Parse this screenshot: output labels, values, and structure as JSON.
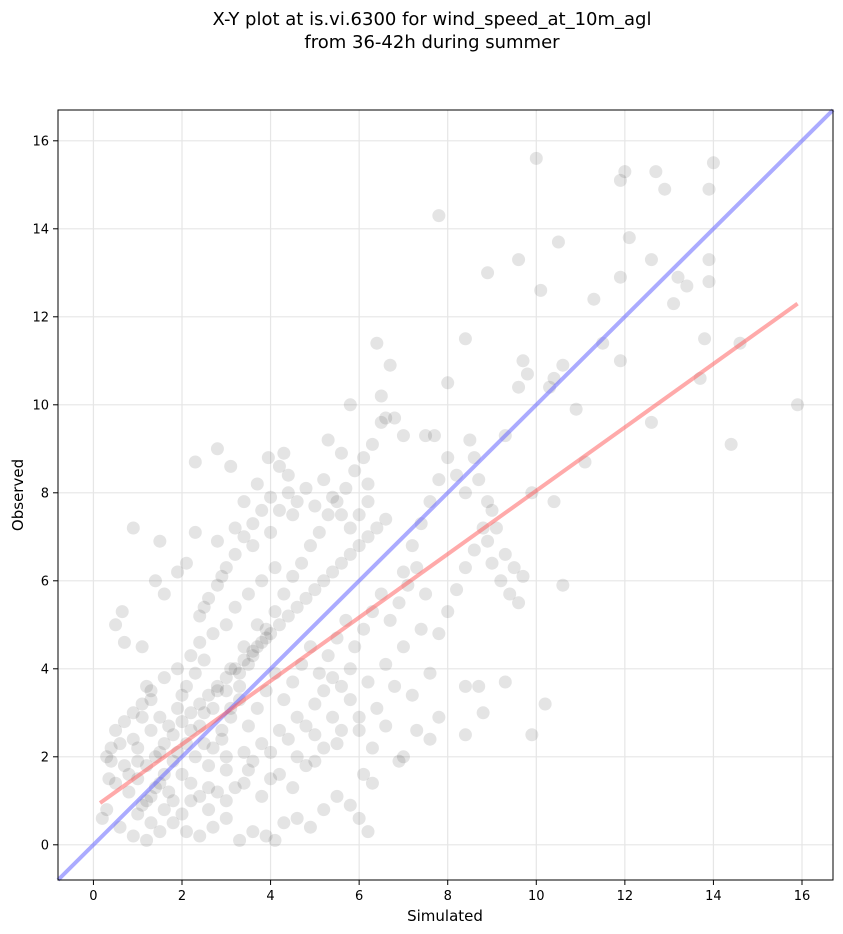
{
  "chart_data": {
    "type": "scatter",
    "title_line1": "X-Y plot at is.vi.6300 for wind_speed_at_10m_agl",
    "title_line2": "from 36-42h during summer",
    "xlabel": "Simulated",
    "ylabel": "Observed",
    "xlim": [
      -0.8,
      16.7
    ],
    "ylim": [
      -0.8,
      16.7
    ],
    "xticks": [
      "0",
      "2",
      "4",
      "6",
      "8",
      "10",
      "12",
      "14",
      "16"
    ],
    "yticks": [
      "0",
      "2",
      "4",
      "6",
      "8",
      "10",
      "12",
      "14",
      "16"
    ],
    "grid": true,
    "colors": {
      "points": "#222222",
      "identity_line": "#6666ff",
      "fit_line": "#ff5555",
      "grid": "#e6e6e6"
    },
    "identity_line": {
      "x": [
        -0.8,
        16.7
      ],
      "y": [
        -0.8,
        16.7
      ]
    },
    "fit_line": {
      "x": [
        0.15,
        15.9
      ],
      "y": [
        0.95,
        12.3
      ]
    },
    "points": [
      [
        0.5,
        5.0
      ],
      [
        0.65,
        5.3
      ],
      [
        0.7,
        4.6
      ],
      [
        0.9,
        7.2
      ],
      [
        1.1,
        4.5
      ],
      [
        1.2,
        3.6
      ],
      [
        1.5,
        6.9
      ],
      [
        1.4,
        6.0
      ],
      [
        1.6,
        5.7
      ],
      [
        1.9,
        6.2
      ],
      [
        2.3,
        8.7
      ],
      [
        2.3,
        7.1
      ],
      [
        2.1,
        6.4
      ],
      [
        2.5,
        5.4
      ],
      [
        2.8,
        6.9
      ],
      [
        2.8,
        9.0
      ],
      [
        2.9,
        6.1
      ],
      [
        3.1,
        8.6
      ],
      [
        3.2,
        7.2
      ],
      [
        3.4,
        7.8
      ],
      [
        3.6,
        6.8
      ],
      [
        3.7,
        8.2
      ],
      [
        3.95,
        8.8
      ],
      [
        4.0,
        7.9
      ],
      [
        4.2,
        8.6
      ],
      [
        4.3,
        8.9
      ],
      [
        4.4,
        8.4
      ],
      [
        4.5,
        7.5
      ],
      [
        4.1,
        6.3
      ],
      [
        3.8,
        6.0
      ],
      [
        3.5,
        5.7
      ],
      [
        3.2,
        5.4
      ],
      [
        3.0,
        5.0
      ],
      [
        2.7,
        4.8
      ],
      [
        2.4,
        4.6
      ],
      [
        2.2,
        4.3
      ],
      [
        1.9,
        4.0
      ],
      [
        1.6,
        3.8
      ],
      [
        1.3,
        3.5
      ],
      [
        1.1,
        3.2
      ],
      [
        0.9,
        3.0
      ],
      [
        0.7,
        2.8
      ],
      [
        0.5,
        2.6
      ],
      [
        0.4,
        2.2
      ],
      [
        0.3,
        2.0
      ],
      [
        0.35,
        1.5
      ],
      [
        0.3,
        0.8
      ],
      [
        0.2,
        0.6
      ],
      [
        0.6,
        0.4
      ],
      [
        0.9,
        0.2
      ],
      [
        1.2,
        0.1
      ],
      [
        1.5,
        0.3
      ],
      [
        1.8,
        0.5
      ],
      [
        2.1,
        0.3
      ],
      [
        2.4,
        0.2
      ],
      [
        2.7,
        0.4
      ],
      [
        3.0,
        0.6
      ],
      [
        3.3,
        0.1
      ],
      [
        3.6,
        0.3
      ],
      [
        3.9,
        0.2
      ],
      [
        4.1,
        0.1
      ],
      [
        4.3,
        0.5
      ],
      [
        4.6,
        0.6
      ],
      [
        4.9,
        0.4
      ],
      [
        5.2,
        0.8
      ],
      [
        5.5,
        1.1
      ],
      [
        5.8,
        0.9
      ],
      [
        6.2,
        0.3
      ],
      [
        6.0,
        0.6
      ],
      [
        6.3,
        1.4
      ],
      [
        0.8,
        1.2
      ],
      [
        1.0,
        1.5
      ],
      [
        1.2,
        1.8
      ],
      [
        1.4,
        2.0
      ],
      [
        1.6,
        2.3
      ],
      [
        1.8,
        2.5
      ],
      [
        2.0,
        2.8
      ],
      [
        2.2,
        3.0
      ],
      [
        2.4,
        3.2
      ],
      [
        2.6,
        3.4
      ],
      [
        2.8,
        3.6
      ],
      [
        3.0,
        3.8
      ],
      [
        3.2,
        4.0
      ],
      [
        3.4,
        4.2
      ],
      [
        3.6,
        4.4
      ],
      [
        3.8,
        4.6
      ],
      [
        4.0,
        4.8
      ],
      [
        4.2,
        5.0
      ],
      [
        4.4,
        5.2
      ],
      [
        4.6,
        5.4
      ],
      [
        4.8,
        5.6
      ],
      [
        5.0,
        5.8
      ],
      [
        5.2,
        6.0
      ],
      [
        5.4,
        6.2
      ],
      [
        5.6,
        6.4
      ],
      [
        5.8,
        6.6
      ],
      [
        6.0,
        6.8
      ],
      [
        6.2,
        7.0
      ],
      [
        6.4,
        7.2
      ],
      [
        6.6,
        7.4
      ],
      [
        1.0,
        2.2
      ],
      [
        1.3,
        2.6
      ],
      [
        1.7,
        1.2
      ],
      [
        2.0,
        1.6
      ],
      [
        2.3,
        2.0
      ],
      [
        2.6,
        1.8
      ],
      [
        2.9,
        2.4
      ],
      [
        3.1,
        2.9
      ],
      [
        3.3,
        3.3
      ],
      [
        3.5,
        2.7
      ],
      [
        3.7,
        3.1
      ],
      [
        3.9,
        3.5
      ],
      [
        4.1,
        3.9
      ],
      [
        4.3,
        3.3
      ],
      [
        4.5,
        3.7
      ],
      [
        4.7,
        4.1
      ],
      [
        4.9,
        4.5
      ],
      [
        5.1,
        3.9
      ],
      [
        5.3,
        4.3
      ],
      [
        5.5,
        4.7
      ],
      [
        5.7,
        5.1
      ],
      [
        5.9,
        4.5
      ],
      [
        6.1,
        4.9
      ],
      [
        6.3,
        5.3
      ],
      [
        6.5,
        5.7
      ],
      [
        6.7,
        5.1
      ],
      [
        6.9,
        5.5
      ],
      [
        7.1,
        5.9
      ],
      [
        7.3,
        6.3
      ],
      [
        7.5,
        5.7
      ],
      [
        1.2,
        1.0
      ],
      [
        1.5,
        1.4
      ],
      [
        1.8,
        1.9
      ],
      [
        2.1,
        2.3
      ],
      [
        2.4,
        2.7
      ],
      [
        2.7,
        3.1
      ],
      [
        3.0,
        3.5
      ],
      [
        3.3,
        3.9
      ],
      [
        3.6,
        4.3
      ],
      [
        3.9,
        4.7
      ],
      [
        1.0,
        0.7
      ],
      [
        1.3,
        1.1
      ],
      [
        1.6,
        1.6
      ],
      [
        1.9,
        2.1
      ],
      [
        2.2,
        2.6
      ],
      [
        2.5,
        3.0
      ],
      [
        2.8,
        3.5
      ],
      [
        3.1,
        4.0
      ],
      [
        3.4,
        4.5
      ],
      [
        3.7,
        5.0
      ],
      [
        0.7,
        1.8
      ],
      [
        0.9,
        2.4
      ],
      [
        1.1,
        2.9
      ],
      [
        1.3,
        3.3
      ],
      [
        1.5,
        2.1
      ],
      [
        1.7,
        2.7
      ],
      [
        1.9,
        3.1
      ],
      [
        2.1,
        3.6
      ],
      [
        2.3,
        3.9
      ],
      [
        2.5,
        4.2
      ],
      [
        2.7,
        2.2
      ],
      [
        2.9,
        2.6
      ],
      [
        3.1,
        3.1
      ],
      [
        3.3,
        3.6
      ],
      [
        3.5,
        4.1
      ],
      [
        3.7,
        4.5
      ],
      [
        3.9,
        4.9
      ],
      [
        4.1,
        5.3
      ],
      [
        4.3,
        5.7
      ],
      [
        4.5,
        6.1
      ],
      [
        4.7,
        6.4
      ],
      [
        4.9,
        6.8
      ],
      [
        5.1,
        7.1
      ],
      [
        5.3,
        7.5
      ],
      [
        5.5,
        7.8
      ],
      [
        5.7,
        8.1
      ],
      [
        5.9,
        8.5
      ],
      [
        6.1,
        8.8
      ],
      [
        6.3,
        9.1
      ],
      [
        6.5,
        9.6
      ],
      [
        5.3,
        9.2
      ],
      [
        5.6,
        8.9
      ],
      [
        5.8,
        10.0
      ],
      [
        6.2,
        8.2
      ],
      [
        6.5,
        10.2
      ],
      [
        6.6,
        9.7
      ],
      [
        6.8,
        9.7
      ],
      [
        6.4,
        11.4
      ],
      [
        6.7,
        10.9
      ],
      [
        7.0,
        9.3
      ],
      [
        1.5,
        2.9
      ],
      [
        2.0,
        3.4
      ],
      [
        2.5,
        2.3
      ],
      [
        3.0,
        2.0
      ],
      [
        3.5,
        1.7
      ],
      [
        4.0,
        1.5
      ],
      [
        4.5,
        1.3
      ],
      [
        5.0,
        1.9
      ],
      [
        5.5,
        2.3
      ],
      [
        6.0,
        2.6
      ],
      [
        2.2,
        1.0
      ],
      [
        2.6,
        1.3
      ],
      [
        3.0,
        1.0
      ],
      [
        3.4,
        1.4
      ],
      [
        3.8,
        1.1
      ],
      [
        4.2,
        1.6
      ],
      [
        4.6,
        2.0
      ],
      [
        5.0,
        2.5
      ],
      [
        5.4,
        2.9
      ],
      [
        5.8,
        3.3
      ],
      [
        6.2,
        3.7
      ],
      [
        6.6,
        4.1
      ],
      [
        7.0,
        4.5
      ],
      [
        7.4,
        4.9
      ],
      [
        6.8,
        3.6
      ],
      [
        6.4,
        3.1
      ],
      [
        6.0,
        2.9
      ],
      [
        5.6,
        2.6
      ],
      [
        5.2,
        2.2
      ],
      [
        4.8,
        1.8
      ],
      [
        7.2,
        3.4
      ],
      [
        7.6,
        3.9
      ],
      [
        7.8,
        2.9
      ],
      [
        7.6,
        2.4
      ],
      [
        7.0,
        2.0
      ],
      [
        6.6,
        2.7
      ],
      [
        6.9,
        1.9
      ],
      [
        7.3,
        2.6
      ],
      [
        6.3,
        2.2
      ],
      [
        6.1,
        1.6
      ],
      [
        7.0,
        6.2
      ],
      [
        7.2,
        6.8
      ],
      [
        7.4,
        7.3
      ],
      [
        7.6,
        7.8
      ],
      [
        7.8,
        8.3
      ],
      [
        8.0,
        8.8
      ],
      [
        7.5,
        9.3
      ],
      [
        7.8,
        14.3
      ],
      [
        8.2,
        8.4
      ],
      [
        8.4,
        8.0
      ],
      [
        8.5,
        9.2
      ],
      [
        8.6,
        8.8
      ],
      [
        8.7,
        8.3
      ],
      [
        8.9,
        7.8
      ],
      [
        8.8,
        7.2
      ],
      [
        8.6,
        6.7
      ],
      [
        8.4,
        6.3
      ],
      [
        8.2,
        5.8
      ],
      [
        8.0,
        5.3
      ],
      [
        7.8,
        4.8
      ],
      [
        8.9,
        6.9
      ],
      [
        9.0,
        6.4
      ],
      [
        9.2,
        6.0
      ],
      [
        9.4,
        5.7
      ],
      [
        9.5,
        6.3
      ],
      [
        9.6,
        5.5
      ],
      [
        9.7,
        6.1
      ],
      [
        9.3,
        6.6
      ],
      [
        9.1,
        7.2
      ],
      [
        9.0,
        7.6
      ],
      [
        8.9,
        13.0
      ],
      [
        9.6,
        13.3
      ],
      [
        10.0,
        15.6
      ],
      [
        10.1,
        12.6
      ],
      [
        10.5,
        13.7
      ],
      [
        9.9,
        8.0
      ],
      [
        10.3,
        10.4
      ],
      [
        10.6,
        10.9
      ],
      [
        10.9,
        9.9
      ],
      [
        11.1,
        8.7
      ],
      [
        11.3,
        12.4
      ],
      [
        11.5,
        11.4
      ],
      [
        11.9,
        11.0
      ],
      [
        11.9,
        12.9
      ],
      [
        12.0,
        15.3
      ],
      [
        12.1,
        13.8
      ],
      [
        11.9,
        15.1
      ],
      [
        12.6,
        9.6
      ],
      [
        12.6,
        13.3
      ],
      [
        12.7,
        15.3
      ],
      [
        12.9,
        14.9
      ],
      [
        13.1,
        12.3
      ],
      [
        13.2,
        12.9
      ],
      [
        13.4,
        12.7
      ],
      [
        13.7,
        10.6
      ],
      [
        13.8,
        11.5
      ],
      [
        13.9,
        12.8
      ],
      [
        13.9,
        13.3
      ],
      [
        13.9,
        14.9
      ],
      [
        14.0,
        15.5
      ],
      [
        14.4,
        9.1
      ],
      [
        14.6,
        11.4
      ],
      [
        15.9,
        10.0
      ],
      [
        9.3,
        9.3
      ],
      [
        9.6,
        10.4
      ],
      [
        9.7,
        11.0
      ],
      [
        9.8,
        10.7
      ],
      [
        10.4,
        10.6
      ],
      [
        10.6,
        5.9
      ],
      [
        10.4,
        7.8
      ],
      [
        8.4,
        3.6
      ],
      [
        8.7,
        3.6
      ],
      [
        8.8,
        3.0
      ],
      [
        8.4,
        2.5
      ],
      [
        9.9,
        2.5
      ],
      [
        10.2,
        3.2
      ],
      [
        9.3,
        3.7
      ],
      [
        8.4,
        11.5
      ],
      [
        8.0,
        10.5
      ],
      [
        7.7,
        9.3
      ],
      [
        0.4,
        1.9
      ],
      [
        0.5,
        1.4
      ],
      [
        0.6,
        2.3
      ],
      [
        0.8,
        1.6
      ],
      [
        1.0,
        1.9
      ],
      [
        1.1,
        0.9
      ],
      [
        1.3,
        0.5
      ],
      [
        1.4,
        1.3
      ],
      [
        1.6,
        0.8
      ],
      [
        1.8,
        1.0
      ],
      [
        2.0,
        0.7
      ],
      [
        2.2,
        1.4
      ],
      [
        2.4,
        1.1
      ],
      [
        2.6,
        0.8
      ],
      [
        2.8,
        1.2
      ],
      [
        3.0,
        1.7
      ],
      [
        3.2,
        1.3
      ],
      [
        3.4,
        2.1
      ],
      [
        3.6,
        1.9
      ],
      [
        3.8,
        2.3
      ],
      [
        4.0,
        2.1
      ],
      [
        4.2,
        2.6
      ],
      [
        4.4,
        2.4
      ],
      [
        4.6,
        2.9
      ],
      [
        4.8,
        2.7
      ],
      [
        5.0,
        3.2
      ],
      [
        5.2,
        3.5
      ],
      [
        5.4,
        3.8
      ],
      [
        5.6,
        3.6
      ],
      [
        5.8,
        4.0
      ],
      [
        2.4,
        5.2
      ],
      [
        2.6,
        5.6
      ],
      [
        2.8,
        5.9
      ],
      [
        3.0,
        6.3
      ],
      [
        3.2,
        6.6
      ],
      [
        3.4,
        7.0
      ],
      [
        3.6,
        7.3
      ],
      [
        3.8,
        7.6
      ],
      [
        4.0,
        7.1
      ],
      [
        4.2,
        7.6
      ],
      [
        4.4,
        8.0
      ],
      [
        4.6,
        7.8
      ],
      [
        4.8,
        8.1
      ],
      [
        5.0,
        7.7
      ],
      [
        5.2,
        8.3
      ],
      [
        5.4,
        7.9
      ],
      [
        5.6,
        7.5
      ],
      [
        5.8,
        7.2
      ],
      [
        6.0,
        7.5
      ],
      [
        6.2,
        7.8
      ]
    ]
  }
}
